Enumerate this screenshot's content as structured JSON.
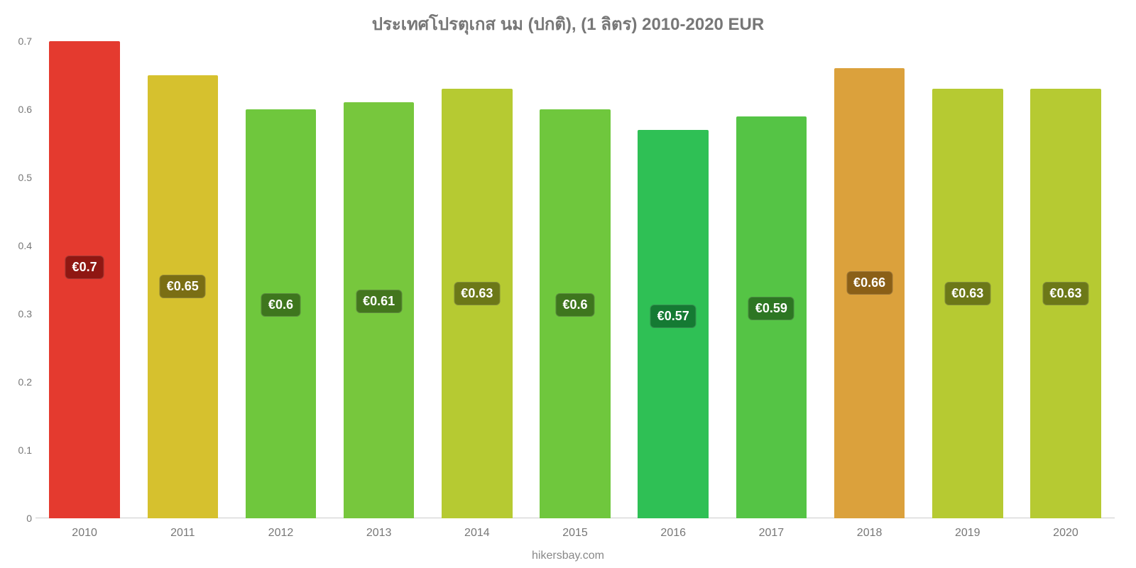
{
  "chart": {
    "type": "bar",
    "title": "ประเทศโปรตุเกส นม (ปกติ), (1 ลิตร) 2010-2020 EUR",
    "title_color": "#777777",
    "title_fontsize": 24,
    "background_color": "#ffffff",
    "axis_label_color": "#777777",
    "axis_label_fontsize": 14,
    "xaxis_label_fontsize": 16,
    "baseline_color": "#cccccc",
    "yaxis": {
      "min": 0,
      "max": 0.7,
      "ticks": [
        0,
        0.1,
        0.2,
        0.3,
        0.4,
        0.5,
        0.6,
        0.7
      ],
      "tick_labels": [
        "0",
        "0.1",
        "0.2",
        "0.3",
        "0.4",
        "0.5",
        "0.6",
        "0.7"
      ]
    },
    "bar_width_ratio": 0.72,
    "value_label_fontsize": 18,
    "value_label_text_color": "#ffffff",
    "value_label_radius": 6,
    "footer": "hikersbay.com",
    "footer_color": "#888888",
    "data": [
      {
        "category": "2010",
        "value": 0.7,
        "label": "€0.7",
        "bar_color": "#e43a2f",
        "label_bg": "#8f1712"
      },
      {
        "category": "2011",
        "value": 0.65,
        "label": "€0.65",
        "bar_color": "#d6c12e",
        "label_bg": "#7a6e14"
      },
      {
        "category": "2012",
        "value": 0.6,
        "label": "€0.6",
        "bar_color": "#6fc73d",
        "label_bg": "#3e761e"
      },
      {
        "category": "2013",
        "value": 0.61,
        "label": "€0.61",
        "bar_color": "#77c73d",
        "label_bg": "#43761e"
      },
      {
        "category": "2014",
        "value": 0.63,
        "label": "€0.63",
        "bar_color": "#b6ca32",
        "label_bg": "#6c7818"
      },
      {
        "category": "2015",
        "value": 0.6,
        "label": "€0.6",
        "bar_color": "#6fc73d",
        "label_bg": "#3e761e"
      },
      {
        "category": "2016",
        "value": 0.57,
        "label": "€0.57",
        "bar_color": "#2fc055",
        "label_bg": "#157a33"
      },
      {
        "category": "2017",
        "value": 0.59,
        "label": "€0.59",
        "bar_color": "#55c445",
        "label_bg": "#2d7623"
      },
      {
        "category": "2018",
        "value": 0.66,
        "label": "€0.66",
        "bar_color": "#dba13c",
        "label_bg": "#8a5f17"
      },
      {
        "category": "2019",
        "value": 0.63,
        "label": "€0.63",
        "bar_color": "#b6ca32",
        "label_bg": "#6c7818"
      },
      {
        "category": "2020",
        "value": 0.63,
        "label": "€0.63",
        "bar_color": "#b6ca32",
        "label_bg": "#6c7818"
      }
    ]
  }
}
